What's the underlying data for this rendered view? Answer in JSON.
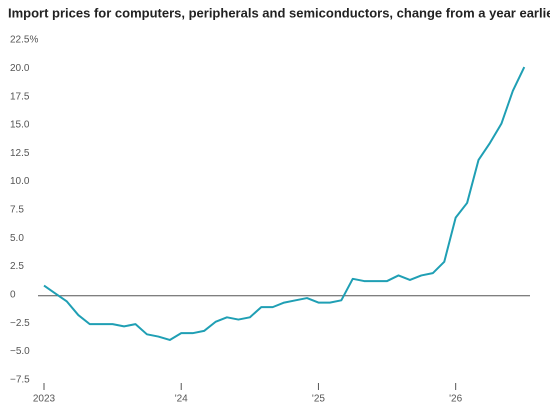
{
  "chart_data": {
    "type": "line",
    "title": "Import prices for computers, peripherals and semiconductors, change from a year earlier",
    "x": [
      0,
      1,
      2,
      3,
      4,
      5,
      6,
      7,
      8,
      9,
      10,
      11,
      12,
      13,
      14,
      15,
      16,
      17,
      18,
      19,
      20,
      21,
      22,
      23,
      24,
      25,
      26,
      27,
      28,
      29,
      30,
      31,
      32,
      33,
      34,
      35,
      36,
      37,
      38,
      39,
      40,
      41,
      42
    ],
    "values": [
      0.9,
      0.2,
      -0.5,
      -1.7,
      -2.5,
      -2.5,
      -2.5,
      -2.7,
      -2.5,
      -3.4,
      -3.6,
      -3.9,
      -3.3,
      -3.3,
      -3.1,
      -2.3,
      -1.9,
      -2.1,
      -1.9,
      -1.0,
      -1.0,
      -0.6,
      -0.4,
      -0.2,
      -0.6,
      -0.6,
      -0.4,
      1.5,
      1.3,
      1.3,
      1.3,
      1.8,
      1.4,
      1.8,
      2.0,
      3.0,
      6.9,
      8.2,
      12.0,
      13.5,
      15.2,
      18.1,
      20.2
    ],
    "color": "#1f9fb4",
    "xlim": [
      0,
      42.5
    ],
    "xticks": [
      {
        "value": 0,
        "label": "2023"
      },
      {
        "value": 12,
        "label": "'24"
      },
      {
        "value": 24,
        "label": "'25"
      },
      {
        "value": 36,
        "label": "'26"
      }
    ],
    "ylim": [
      -8,
      22.5
    ],
    "yticks": [
      {
        "value": 22.5,
        "label": "22.5%"
      },
      {
        "value": 20,
        "label": "20.0"
      },
      17.5,
      {
        "value": 15,
        "label": "15.0"
      },
      12.5,
      {
        "value": 10,
        "label": "10.0"
      },
      7.5,
      {
        "value": 5,
        "label": "5.0"
      },
      2.5,
      0,
      {
        "value": -2.5,
        "label": "−2.5"
      },
      {
        "value": -5,
        "label": "−5.0"
      },
      {
        "value": -7.5,
        "label": "−7.5"
      }
    ],
    "zero_line": true
  }
}
